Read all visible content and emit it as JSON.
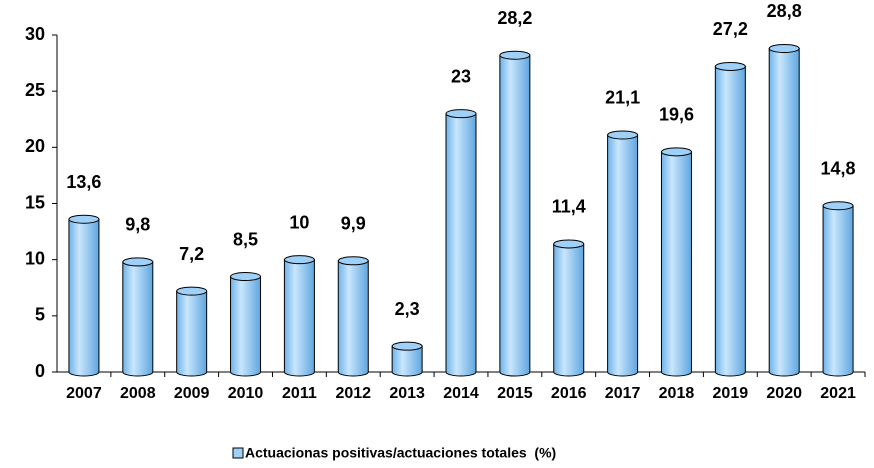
{
  "chart_data": {
    "type": "bar",
    "categories": [
      "2007",
      "2008",
      "2009",
      "2010",
      "2011",
      "2012",
      "2013",
      "2014",
      "2015",
      "2016",
      "2017",
      "2018",
      "2019",
      "2020",
      "2021"
    ],
    "series": [
      {
        "name": "Actuacionas positivas/actuaciones totales  (%)",
        "color": "#9fd0f7",
        "values": [
          13.6,
          9.8,
          7.2,
          8.5,
          10,
          9.9,
          2.3,
          23,
          28.2,
          11.4,
          21.1,
          19.6,
          27.2,
          28.8,
          14.8
        ],
        "value_labels": [
          "13,6",
          "9,8",
          "7,2",
          "8,5",
          "10",
          "9,9",
          "2,3",
          "23",
          "28,2",
          "11,4",
          "21,1",
          "19,6",
          "27,2",
          "28,8",
          "14,8"
        ]
      }
    ],
    "ylim": [
      0,
      30
    ],
    "yticks": [
      0,
      5,
      10,
      15,
      20,
      25,
      30
    ],
    "grid": false,
    "legend": "bottom"
  }
}
